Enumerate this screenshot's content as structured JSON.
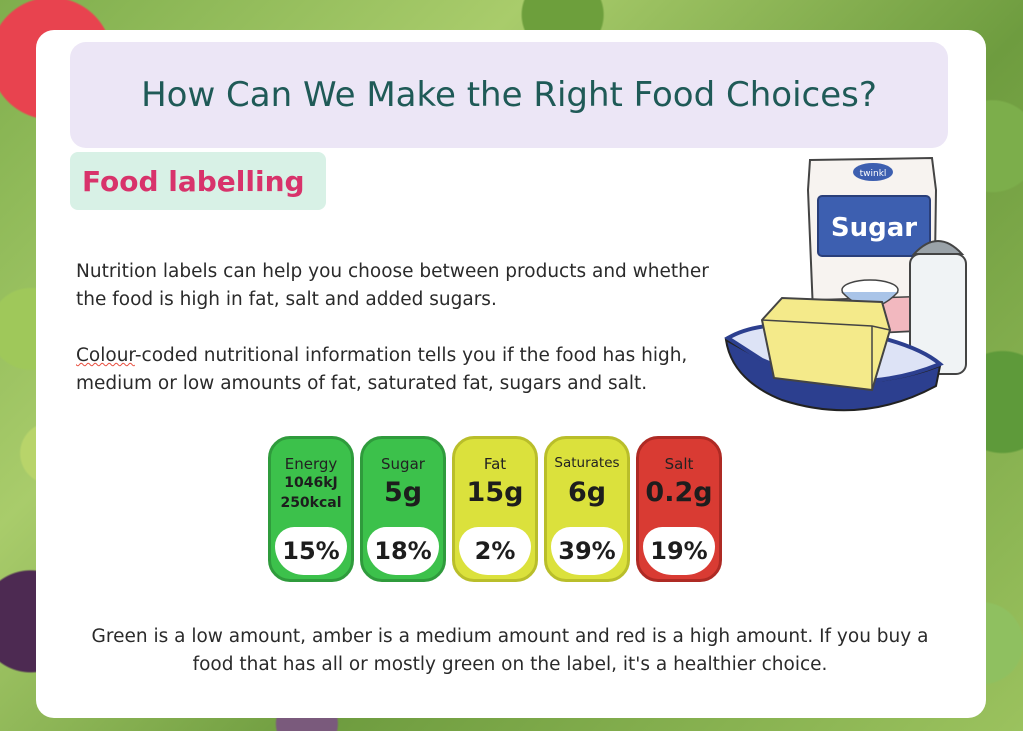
{
  "title": "How Can We Make the Right Food Choices?",
  "subtitle": "Food labelling",
  "paragraph1": "Nutrition labels can help you choose between products and whether the food is high in fat, salt and added sugars.",
  "paragraph2_word": "Colour",
  "paragraph2_rest": "-coded nutritional information tells you if the food has  high, medium or low amounts of fat, saturated fat, sugars and salt.",
  "illustration": {
    "brand": "twinkl",
    "sugar_label": "Sugar",
    "colors": {
      "bag_pink": "#f2b8bf",
      "bag_blue": "#3d5fb0",
      "butter": "#f4ea8a",
      "dish": "#2c3f8f"
    }
  },
  "labels": [
    {
      "name": "Energy",
      "line1": "1046kJ",
      "line2": "250kcal",
      "percent": "15%",
      "level": "green"
    },
    {
      "name": "Sugar",
      "amount": "5g",
      "percent": "18%",
      "level": "green"
    },
    {
      "name": "Fat",
      "amount": "15g",
      "percent": "2%",
      "level": "amber"
    },
    {
      "name": "Saturates",
      "amount": "6g",
      "percent": "39%",
      "level": "amber"
    },
    {
      "name": "Salt",
      "amount": "0.2g",
      "percent": "19%",
      "level": "red"
    }
  ],
  "bottom_text": "Green is a low amount, amber is a medium amount and red is a high amount. If you buy a food that has all or mostly green on the label, it's a healthier choice."
}
